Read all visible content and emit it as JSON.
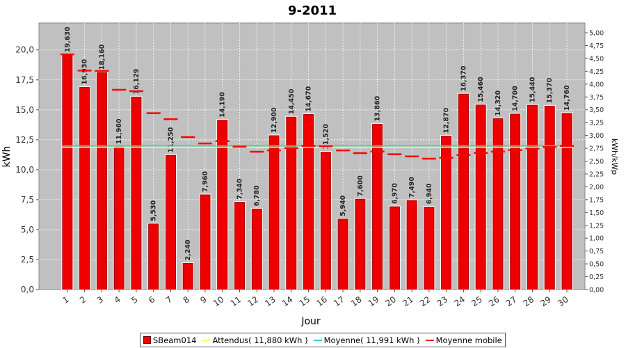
{
  "chart_data": {
    "type": "bar",
    "title": "9-2011",
    "xlabel": "Jour",
    "ylabel": "kWh",
    "y2label": "kWh/kWp",
    "ylim": [
      0,
      22.25
    ],
    "y2lim": [
      0,
      5.19
    ],
    "yticks": [
      "0,0",
      "2,5",
      "5,0",
      "7,5",
      "10,0",
      "12,5",
      "15,0",
      "17,5",
      "20,0"
    ],
    "y2ticks": [
      "0,00",
      "0,25",
      "0,50",
      "0,75",
      "1,00",
      "1,25",
      "1,50",
      "1,75",
      "2,00",
      "2,25",
      "2,50",
      "2,75",
      "3,00",
      "3,25",
      "3,50",
      "3,75",
      "4,00",
      "4,25",
      "4,50",
      "4,75",
      "5,00"
    ],
    "categories": [
      "1",
      "2",
      "3",
      "4",
      "5",
      "6",
      "7",
      "8",
      "9",
      "10",
      "11",
      "12",
      "13",
      "14",
      "15",
      "16",
      "17",
      "18",
      "19",
      "20",
      "21",
      "22",
      "23",
      "24",
      "25",
      "26",
      "27",
      "28",
      "29",
      "30"
    ],
    "series": [
      {
        "name": "SBeam014",
        "color": "#ee0000",
        "values": [
          19.63,
          16.93,
          18.16,
          11.96,
          16.129,
          5.53,
          11.25,
          2.24,
          7.96,
          14.19,
          7.34,
          6.78,
          12.9,
          14.45,
          14.67,
          11.52,
          5.94,
          7.6,
          13.86,
          6.97,
          7.49,
          6.94,
          12.87,
          16.37,
          15.46,
          14.32,
          14.7,
          15.44,
          15.37,
          14.76
        ],
        "labels": [
          "19,630",
          "16,930",
          "18,160",
          "11,960",
          "16,129",
          "5,530",
          "11,250",
          "2,240",
          "7,960",
          "14,190",
          "7,340",
          "6,780",
          "12,900",
          "14,450",
          "14,670",
          "11,520",
          "5,940",
          "7,600",
          "13,860",
          "6,970",
          "7,490",
          "6,940",
          "12,870",
          "16,370",
          "15,460",
          "14,320",
          "14,700",
          "15,440",
          "15,370",
          "14,760"
        ]
      },
      {
        "name": "Moyenne mobile",
        "color": "#ff0000",
        "values": [
          19.63,
          18.28,
          18.24,
          16.67,
          16.56,
          14.72,
          14.22,
          12.72,
          12.19,
          12.39,
          11.93,
          11.5,
          11.61,
          11.81,
          11.99,
          11.96,
          11.61,
          11.39,
          11.52,
          11.29,
          11.11,
          10.92,
          11.0,
          11.23,
          11.4,
          11.51,
          11.63,
          11.77,
          11.89,
          11.99
        ]
      }
    ],
    "reference_lines": [
      {
        "name": "Attendus( 11,880 kWh )",
        "value": 11.88,
        "color": "#ffff66"
      },
      {
        "name": "Moyenne( 11,991 kWh )",
        "value": 11.991,
        "color": "#33cccc"
      }
    ],
    "grid": true,
    "legend_position": "bottom"
  }
}
